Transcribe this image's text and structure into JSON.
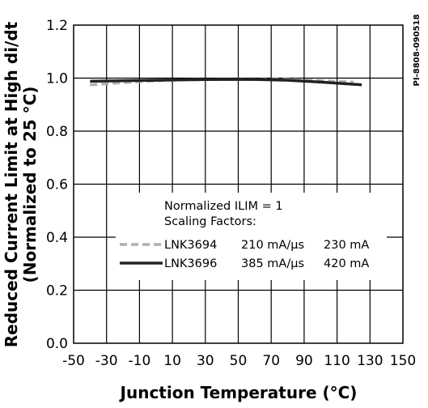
{
  "chart_data": {
    "type": "line",
    "xlabel": "Junction Temperature (°C)",
    "ylabel_line1": "Reduced Current Limit at High di/dt",
    "ylabel_line2": "(Normalized to 25 °C)",
    "figure_id": "PI-8808-090518",
    "xlim": [
      -50,
      150
    ],
    "ylim": [
      0.0,
      1.2
    ],
    "x_ticks": [
      -50,
      -30,
      -10,
      10,
      30,
      50,
      70,
      90,
      110,
      130,
      150
    ],
    "y_ticks": [
      "0.0",
      "0.2",
      "0.4",
      "0.6",
      "0.8",
      "1.0",
      "1.2"
    ],
    "grid": true,
    "legend": {
      "header_line1": "Normalized ILIM = 1",
      "header_line2": "Scaling Factors:",
      "placement": "center-bottom",
      "entries": [
        {
          "device": "LNK3694",
          "didt": "210 mA/µs",
          "ilim": "230 mA"
        },
        {
          "device": "LNK3696",
          "didt": "385 mA/µs",
          "ilim": "420 mA"
        }
      ]
    },
    "series": [
      {
        "name": "LNK3694",
        "style": "dashed",
        "color": "#b0b0b0",
        "x": [
          -40,
          -20,
          0,
          20,
          40,
          60,
          80,
          100,
          120
        ],
        "y": [
          0.975,
          0.983,
          0.99,
          0.994,
          0.995,
          0.995,
          0.995,
          0.99,
          0.985
        ]
      },
      {
        "name": "LNK3696",
        "style": "solid",
        "color": "#222222",
        "x": [
          -40,
          -20,
          0,
          20,
          40,
          60,
          80,
          100,
          125
        ],
        "y": [
          0.988,
          0.99,
          0.992,
          0.994,
          0.995,
          0.995,
          0.992,
          0.985,
          0.975
        ]
      }
    ]
  }
}
